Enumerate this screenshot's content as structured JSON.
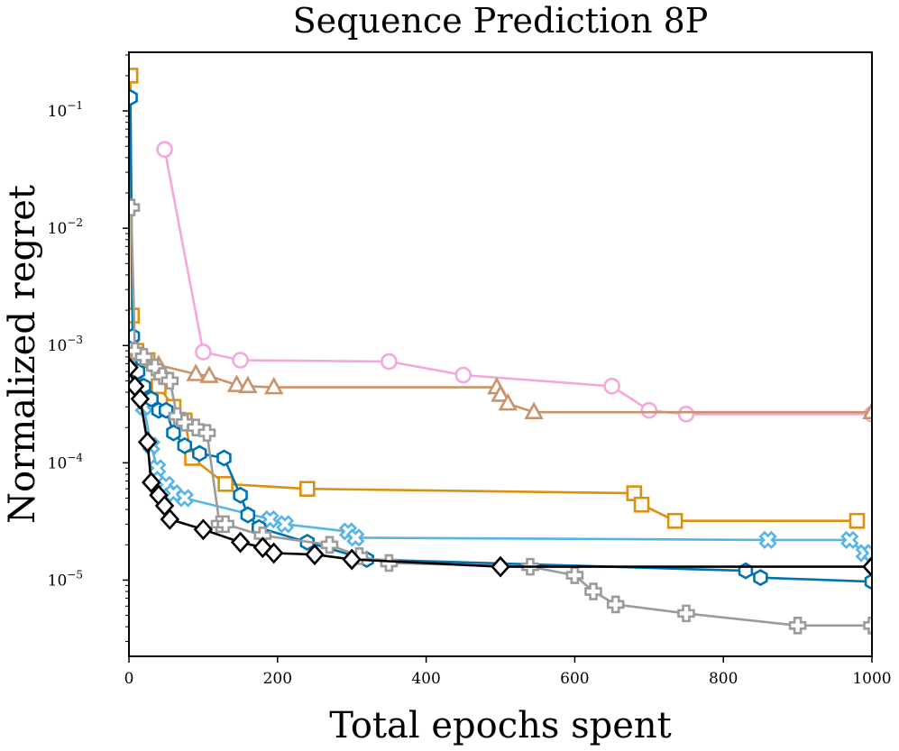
{
  "chart_data": {
    "type": "line",
    "title": "Sequence Prediction 8P",
    "xlabel": "Total epochs spent",
    "ylabel": "Normalized regret",
    "x_scale": "linear",
    "y_scale": "log",
    "xlim": [
      0,
      1000
    ],
    "ylim_log10": [
      -5.65,
      -0.5
    ],
    "x_ticks": [
      0,
      200,
      400,
      600,
      800,
      1000
    ],
    "x_tick_labels": [
      "0",
      "200",
      "400",
      "600",
      "800",
      "1000"
    ],
    "y_ticks_log10": [
      -1,
      -2,
      -3,
      -4,
      -5
    ],
    "y_tick_labels": [
      [
        "10",
        "−1"
      ],
      [
        "10",
        "−2"
      ],
      [
        "10",
        "−3"
      ],
      [
        "10",
        "−4"
      ],
      [
        "10",
        "−5"
      ]
    ],
    "grid": false,
    "legend": "none",
    "series": [
      {
        "name": "pink-circle",
        "color": "#f4a7dc",
        "marker": "circle",
        "points": [
          [
            48,
            0.047
          ],
          [
            100,
            0.00088
          ],
          [
            150,
            0.00075
          ],
          [
            350,
            0.00073
          ],
          [
            450,
            0.00056
          ],
          [
            650,
            0.00045
          ],
          [
            700,
            0.00028
          ],
          [
            750,
            0.00026
          ],
          [
            1000,
            0.00026
          ]
        ]
      },
      {
        "name": "brown-triangle",
        "color": "#c8926a",
        "marker": "triangle",
        "points": [
          [
            0,
            0.0009
          ],
          [
            40,
            0.00068
          ],
          [
            90,
            0.00057
          ],
          [
            108,
            0.00055
          ],
          [
            145,
            0.00046
          ],
          [
            160,
            0.00045
          ],
          [
            195,
            0.00044
          ],
          [
            495,
            0.00044
          ],
          [
            500,
            0.00038
          ],
          [
            510,
            0.00032
          ],
          [
            545,
            0.00027
          ],
          [
            1000,
            0.00027
          ]
        ]
      },
      {
        "name": "orange-square",
        "color": "#de8f0f",
        "marker": "square",
        "points": [
          [
            2,
            0.2
          ],
          [
            4,
            0.0018
          ],
          [
            10,
            0.0009
          ],
          [
            25,
            0.00075
          ],
          [
            40,
            0.00045
          ],
          [
            60,
            0.0003
          ],
          [
            75,
            0.00023
          ],
          [
            85,
            0.00011
          ],
          [
            130,
            6.6e-05
          ],
          [
            240,
            6e-05
          ],
          [
            680,
            5.5e-05
          ],
          [
            690,
            4.4e-05
          ],
          [
            735,
            3.2e-05
          ],
          [
            980,
            3.2e-05
          ]
        ]
      },
      {
        "name": "light-blue-x",
        "color": "#56b4e9",
        "marker": "x",
        "points": [
          [
            2,
            0.001
          ],
          [
            10,
            0.0006
          ],
          [
            20,
            0.0003
          ],
          [
            30,
            0.00014
          ],
          [
            38,
            9e-05
          ],
          [
            50,
            6.5e-05
          ],
          [
            60,
            5.5e-05
          ],
          [
            75,
            5e-05
          ],
          [
            190,
            3.3e-05
          ],
          [
            210,
            3e-05
          ],
          [
            295,
            2.6e-05
          ],
          [
            305,
            2.3e-05
          ],
          [
            860,
            2.2e-05
          ],
          [
            970,
            2.2e-05
          ],
          [
            990,
            1.7e-05
          ],
          [
            1000,
            1.7e-05
          ]
        ]
      },
      {
        "name": "dark-blue-hexagon",
        "color": "#0072b2",
        "marker": "hexagon",
        "points": [
          [
            2,
            0.13
          ],
          [
            5,
            0.0012
          ],
          [
            12,
            0.0006
          ],
          [
            20,
            0.00045
          ],
          [
            30,
            0.00035
          ],
          [
            40,
            0.00028
          ],
          [
            50,
            0.00028
          ],
          [
            60,
            0.00018
          ],
          [
            75,
            0.00014
          ],
          [
            95,
            0.00012
          ],
          [
            128,
            0.00011
          ],
          [
            150,
            5.3e-05
          ],
          [
            160,
            3.6e-05
          ],
          [
            175,
            2.8e-05
          ],
          [
            240,
            2.1e-05
          ],
          [
            320,
            1.5e-05
          ],
          [
            830,
            1.2e-05
          ],
          [
            850,
            1.05e-05
          ],
          [
            1000,
            9.7e-06
          ]
        ]
      },
      {
        "name": "gray-plus",
        "color": "#9b9b9b",
        "marker": "plus",
        "points": [
          [
            3,
            0.015
          ],
          [
            8,
            0.0009
          ],
          [
            20,
            0.0008
          ],
          [
            35,
            0.00065
          ],
          [
            45,
            0.00055
          ],
          [
            55,
            0.0005
          ],
          [
            65,
            0.00025
          ],
          [
            75,
            0.00022
          ],
          [
            90,
            0.0002
          ],
          [
            105,
            0.00018
          ],
          [
            122,
            3e-05
          ],
          [
            130,
            3e-05
          ],
          [
            180,
            2.4e-05
          ],
          [
            270,
            2e-05
          ],
          [
            310,
            1.6e-05
          ],
          [
            350,
            1.4e-05
          ],
          [
            540,
            1.3e-05
          ],
          [
            600,
            1.1e-05
          ],
          [
            625,
            8e-06
          ],
          [
            655,
            6.2e-06
          ],
          [
            750,
            5.2e-06
          ],
          [
            900,
            4.1e-06
          ],
          [
            1000,
            4.1e-06
          ]
        ]
      },
      {
        "name": "black-diamond",
        "color": "#000000",
        "marker": "diamond",
        "points": [
          [
            0,
            0.00065
          ],
          [
            8,
            0.00045
          ],
          [
            15,
            0.00035
          ],
          [
            25,
            0.00015
          ],
          [
            30,
            6.8e-05
          ],
          [
            40,
            5.3e-05
          ],
          [
            48,
            4.3e-05
          ],
          [
            55,
            3.3e-05
          ],
          [
            100,
            2.7e-05
          ],
          [
            150,
            2.1e-05
          ],
          [
            180,
            1.9e-05
          ],
          [
            195,
            1.7e-05
          ],
          [
            250,
            1.65e-05
          ],
          [
            300,
            1.5e-05
          ],
          [
            500,
            1.3e-05
          ],
          [
            1000,
            1.3e-05
          ]
        ]
      }
    ]
  }
}
